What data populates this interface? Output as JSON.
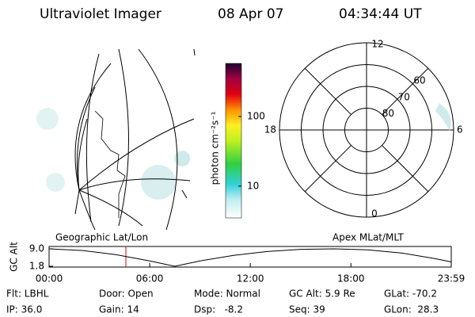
{
  "header": {
    "instrument": "Ultraviolet Imager",
    "date": "08 Apr 07",
    "time": "04:34:44 UT"
  },
  "colorbar": {
    "label": "photon cm⁻²s⁻¹",
    "log": true,
    "clim": [
      3.5,
      577
    ],
    "ticks": [
      10,
      100
    ]
  },
  "polar": {
    "rlim": [
      90,
      50
    ],
    "rings": [
      80,
      70,
      60
    ],
    "mlt_labels": [
      "0",
      "6",
      "12",
      "18"
    ]
  },
  "map_label": "Geographic Lat/Lon",
  "polar_label": "Apex MLat/MLT",
  "chart_data": {
    "type": "line",
    "ylabel": "GC Alt",
    "x": [
      0,
      2,
      4,
      6,
      7.5,
      9,
      11,
      13,
      15,
      17,
      19,
      21,
      23,
      23.983
    ],
    "series": [
      {
        "name": "GC Alt",
        "color": "#000000",
        "values": [
          9.0,
          8.3,
          6.6,
          4.0,
          1.8,
          4.0,
          6.3,
          7.9,
          8.8,
          9.0,
          8.6,
          7.3,
          5.0,
          3.6
        ]
      }
    ],
    "marker_x": 4.579,
    "marker_color": "#e00000",
    "xlim": [
      0,
      23.983
    ],
    "ylim": [
      1.8,
      9.0
    ],
    "xticks": [
      {
        "value": 0,
        "label": "00:00"
      },
      {
        "value": 6,
        "label": "06:00"
      },
      {
        "value": 12,
        "label": "12:00"
      },
      {
        "value": 18,
        "label": "18:00"
      },
      {
        "value": 23.983,
        "label": "23:59"
      }
    ],
    "yticks": [
      {
        "value": 9.0,
        "label": "9.0"
      },
      {
        "value": 1.8,
        "label": "1.8"
      }
    ]
  },
  "info": [
    [
      "Flt: LBHL",
      "Door: Open",
      "Mode: Normal",
      "GC Alt: 5.9 Re",
      "GLat: -70.2"
    ],
    [
      "IP: 36.0",
      "Gain: 14",
      "Dsp:   -8.2",
      "Seq: 39",
      "GLon:  28.3"
    ]
  ]
}
